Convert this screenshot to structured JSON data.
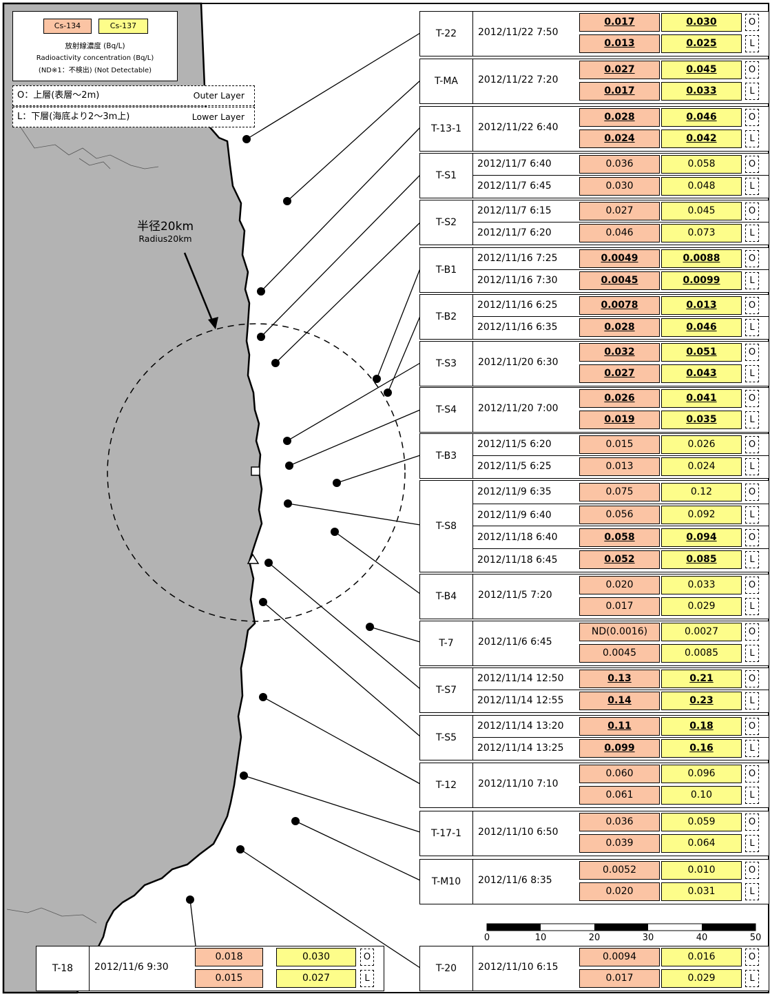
{
  "legend": {
    "cs134_label": "Cs-134",
    "cs137_label": "Cs-137",
    "line1": "放射線濃度 (Bq/L)",
    "line2": "Radioactivity concentration (Bq/L)",
    "line3": "(ND※1：不検出) (Not Detectable)"
  },
  "layer_keys": [
    {
      "jp": "O：上層(表層～2m)",
      "en": "Outer Layer"
    },
    {
      "jp": "L：下層(海底より2～3m上)",
      "en": "Lower Layer"
    }
  ],
  "radius_label": {
    "jp": "半径20km",
    "en": "Radius20km"
  },
  "colors": {
    "land": "#b3b3b3",
    "cs134": "#fbc4a4",
    "cs137": "#fdfd8a"
  },
  "scale_bar": {
    "ticks": [
      "0",
      "10",
      "20",
      "30",
      "40",
      "50"
    ]
  },
  "stations": [
    {
      "name": "T-22",
      "date": "2012/11/22 7:50",
      "rows": [
        {
          "cs134": "0.017",
          "cs137": "0.030",
          "layer": "O",
          "bold": true
        },
        {
          "cs134": "0.013",
          "cs137": "0.025",
          "layer": "L",
          "bold": true
        }
      ]
    },
    {
      "name": "T-MA",
      "date": "2012/11/22 7:20",
      "rows": [
        {
          "cs134": "0.027",
          "cs137": "0.045",
          "layer": "O",
          "bold": true
        },
        {
          "cs134": "0.017",
          "cs137": "0.033",
          "layer": "L",
          "bold": true
        }
      ]
    },
    {
      "name": "T-13-1",
      "date": "2012/11/22 6:40",
      "rows": [
        {
          "cs134": "0.028",
          "cs137": "0.046",
          "layer": "O",
          "bold": true
        },
        {
          "cs134": "0.024",
          "cs137": "0.042",
          "layer": "L",
          "bold": true
        }
      ]
    },
    {
      "name": "T-S1",
      "rows": [
        {
          "date": "2012/11/7 6:40",
          "cs134": "0.036",
          "cs137": "0.058",
          "layer": "O",
          "bold": false
        },
        {
          "date": "2012/11/7 6:45",
          "cs134": "0.030",
          "cs137": "0.048",
          "layer": "L",
          "bold": false
        }
      ]
    },
    {
      "name": "T-S2",
      "rows": [
        {
          "date": "2012/11/7 6:15",
          "cs134": "0.027",
          "cs137": "0.045",
          "layer": "O",
          "bold": false
        },
        {
          "date": "2012/11/7 6:20",
          "cs134": "0.046",
          "cs137": "0.073",
          "layer": "L",
          "bold": false
        }
      ]
    },
    {
      "name": "T-B1",
      "rows": [
        {
          "date": "2012/11/16 7:25",
          "cs134": "0.0049",
          "cs137": "0.0088",
          "layer": "O",
          "bold": true
        },
        {
          "date": "2012/11/16 7:30",
          "cs134": "0.0045",
          "cs137": "0.0099",
          "layer": "L",
          "bold": true
        }
      ]
    },
    {
      "name": "T-B2",
      "rows": [
        {
          "date": "2012/11/16 6:25",
          "cs134": "0.0078",
          "cs137": "0.013",
          "layer": "O",
          "bold": true
        },
        {
          "date": "2012/11/16 6:35",
          "cs134": "0.028",
          "cs137": "0.046",
          "layer": "L",
          "bold": true
        }
      ]
    },
    {
      "name": "T-S3",
      "date": "2012/11/20 6:30",
      "rows": [
        {
          "cs134": "0.032",
          "cs137": "0.051",
          "layer": "O",
          "bold": true
        },
        {
          "cs134": "0.027",
          "cs137": "0.043",
          "layer": "L",
          "bold": true
        }
      ]
    },
    {
      "name": "T-S4",
      "date": "2012/11/20 7:00",
      "rows": [
        {
          "cs134": "0.026",
          "cs137": "0.041",
          "layer": "O",
          "bold": true
        },
        {
          "cs134": "0.019",
          "cs137": "0.035",
          "layer": "L",
          "bold": true
        }
      ]
    },
    {
      "name": "T-B3",
      "rows": [
        {
          "date": "2012/11/5 6:20",
          "cs134": "0.015",
          "cs137": "0.026",
          "layer": "O",
          "bold": false
        },
        {
          "date": "2012/11/5 6:25",
          "cs134": "0.013",
          "cs137": "0.024",
          "layer": "L",
          "bold": false
        }
      ]
    },
    {
      "name": "T-S8",
      "rows": [
        {
          "date": "2012/11/9 6:35",
          "cs134": "0.075",
          "cs137": "0.12",
          "layer": "O",
          "bold": false
        },
        {
          "date": "2012/11/9 6:40",
          "cs134": "0.056",
          "cs137": "0.092",
          "layer": "L",
          "bold": false
        },
        {
          "date": "2012/11/18 6:40",
          "cs134": "0.058",
          "cs137": "0.094",
          "layer": "O",
          "bold": true
        },
        {
          "date": "2012/11/18 6:45",
          "cs134": "0.052",
          "cs137": "0.085",
          "layer": "L",
          "bold": true
        }
      ]
    },
    {
      "name": "T-B4",
      "date": "2012/11/5 7:20",
      "rows": [
        {
          "cs134": "0.020",
          "cs137": "0.033",
          "layer": "O",
          "bold": false
        },
        {
          "cs134": "0.017",
          "cs137": "0.029",
          "layer": "L",
          "bold": false
        }
      ]
    },
    {
      "name": "T-7",
      "date": "2012/11/6 6:45",
      "rows": [
        {
          "cs134": "ND(0.0016)",
          "cs137": "0.0027",
          "layer": "O",
          "bold": false
        },
        {
          "cs134": "0.0045",
          "cs137": "0.0085",
          "layer": "L",
          "bold": false
        }
      ]
    },
    {
      "name": "T-S7",
      "rows": [
        {
          "date": "2012/11/14 12:50",
          "cs134": "0.13",
          "cs137": "0.21",
          "layer": "O",
          "bold": true
        },
        {
          "date": "2012/11/14 12:55",
          "cs134": "0.14",
          "cs137": "0.23",
          "layer": "L",
          "bold": true
        }
      ]
    },
    {
      "name": "T-S5",
      "rows": [
        {
          "date": "2012/11/14 13:20",
          "cs134": "0.11",
          "cs137": "0.18",
          "layer": "O",
          "bold": true
        },
        {
          "date": "2012/11/14 13:25",
          "cs134": "0.099",
          "cs137": "0.16",
          "layer": "L",
          "bold": true
        }
      ]
    },
    {
      "name": "T-12",
      "date": "2012/11/10 7:10",
      "rows": [
        {
          "cs134": "0.060",
          "cs137": "0.096",
          "layer": "O",
          "bold": false
        },
        {
          "cs134": "0.061",
          "cs137": "0.10",
          "layer": "L",
          "bold": false
        }
      ]
    },
    {
      "name": "T-17-1",
      "date": "2012/11/10 6:50",
      "rows": [
        {
          "cs134": "0.036",
          "cs137": "0.059",
          "layer": "O",
          "bold": false
        },
        {
          "cs134": "0.039",
          "cs137": "0.064",
          "layer": "L",
          "bold": false
        }
      ]
    },
    {
      "name": "T-M10",
      "date": "2012/11/6 8:35",
      "rows": [
        {
          "cs134": "0.0052",
          "cs137": "0.010",
          "layer": "O",
          "bold": false
        },
        {
          "cs134": "0.020",
          "cs137": "0.031",
          "layer": "L",
          "bold": false
        }
      ]
    },
    {
      "name": "T-20",
      "date": "2012/11/10 6:15",
      "rows": [
        {
          "cs134": "0.0094",
          "cs137": "0.016",
          "layer": "O",
          "bold": false
        },
        {
          "cs134": "0.017",
          "cs137": "0.029",
          "layer": "L",
          "bold": false
        }
      ]
    },
    {
      "name": "T-18",
      "date": "2012/11/6 9:30",
      "rows": [
        {
          "cs134": "0.018",
          "cs137": "0.030",
          "layer": "O",
          "bold": false
        },
        {
          "cs134": "0.015",
          "cs137": "0.027",
          "layer": "L",
          "bold": false
        }
      ]
    }
  ]
}
